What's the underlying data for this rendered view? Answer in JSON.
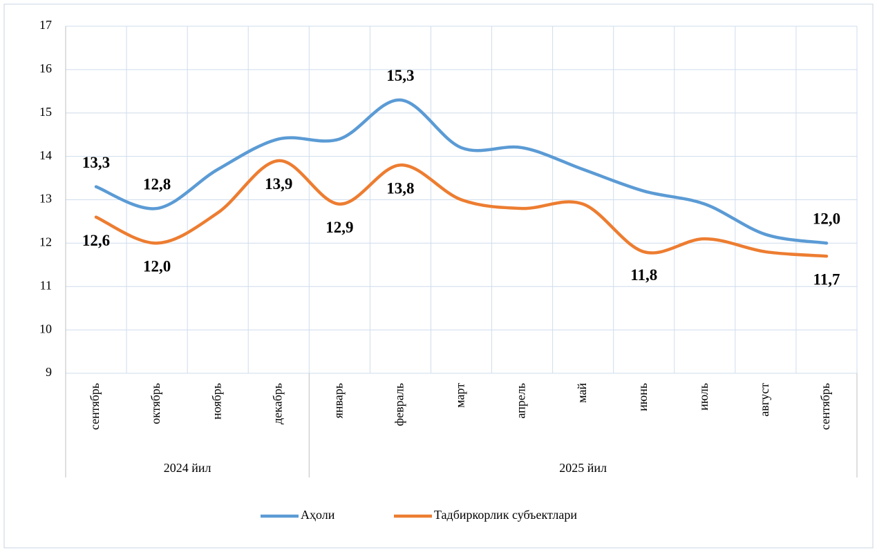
{
  "chart_data": {
    "type": "line",
    "categories": [
      "сентябрь",
      "октябрь",
      "ноябрь",
      "декабрь",
      "январь",
      "февраль",
      "март",
      "апрель",
      "май",
      "июнь",
      "июль",
      "август",
      "сентябрь"
    ],
    "x_groups": [
      {
        "label": "2024 йил",
        "size": 4
      },
      {
        "label": "2025 йил",
        "size": 9
      }
    ],
    "series": [
      {
        "name": "Аҳоли",
        "color": "#5b9bd5",
        "values": [
          13.3,
          12.8,
          13.7,
          14.4,
          14.4,
          15.3,
          14.2,
          14.2,
          13.7,
          13.2,
          12.9,
          12.2,
          12.0
        ],
        "value_labels": [
          "13,3",
          "12,8",
          null,
          null,
          null,
          "15,3",
          null,
          null,
          null,
          null,
          null,
          null,
          "12,0"
        ]
      },
      {
        "name": "Тадбиркорлик субъектлари",
        "color": "#ed7d31",
        "values": [
          12.6,
          12.0,
          12.7,
          13.9,
          12.9,
          13.8,
          13.0,
          12.8,
          12.9,
          11.8,
          12.1,
          11.8,
          11.7
        ],
        "value_labels": [
          "12,6",
          "12,0",
          null,
          "13,9",
          "12,9",
          "13,8",
          null,
          null,
          null,
          "11,8",
          null,
          null,
          "11,7"
        ]
      }
    ],
    "ylim": [
      9,
      17
    ],
    "yticks": [
      9,
      10,
      11,
      12,
      13,
      14,
      15,
      16,
      17
    ],
    "grid": true,
    "legend": "bottom"
  }
}
